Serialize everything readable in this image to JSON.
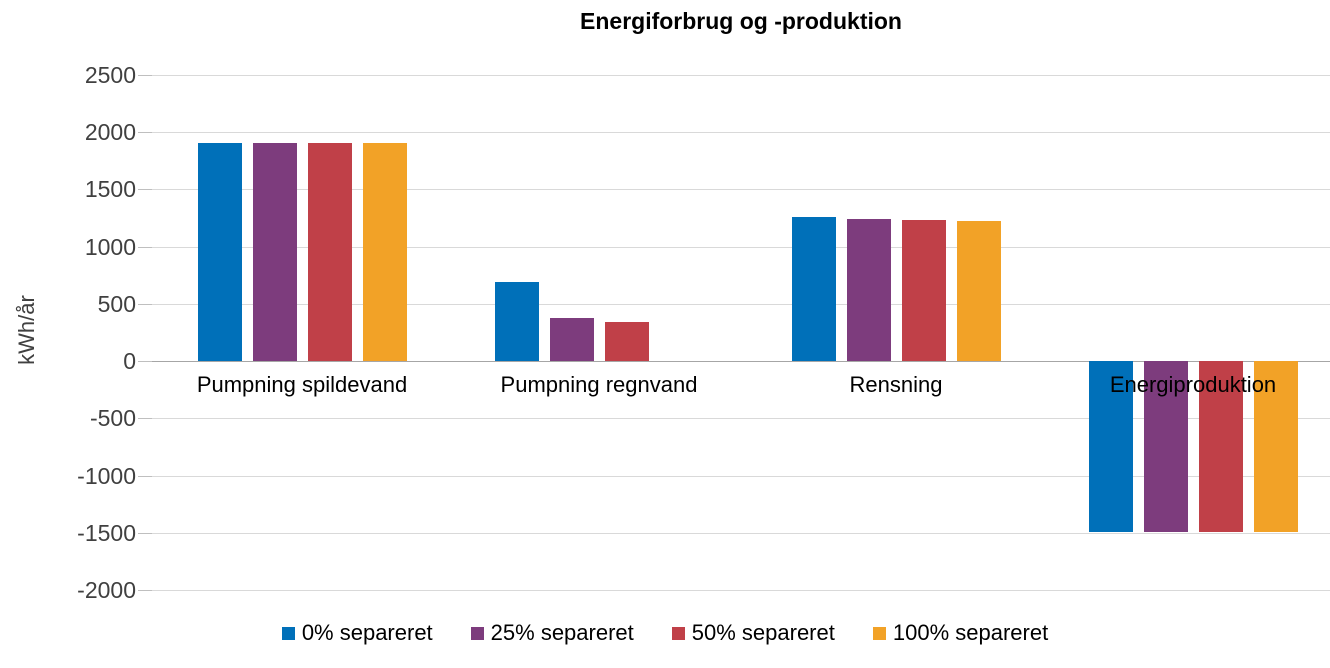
{
  "chart_data": {
    "type": "bar",
    "title": "Energiforbrug og -produktion",
    "ylabel": "kWh/år",
    "categories": [
      "Pumpning spildevand",
      "Pumpning regnvand",
      "Rensning",
      "Energiproduktion"
    ],
    "series": [
      {
        "name": "0% separeret",
        "color": "#0070B9",
        "values": [
          1910,
          690,
          1260,
          -1490
        ]
      },
      {
        "name": "25% separeret",
        "color": "#7D3C7D",
        "values": [
          1910,
          380,
          1240,
          -1490
        ]
      },
      {
        "name": "50% separeret",
        "color": "#C04048",
        "values": [
          1910,
          340,
          1230,
          -1490
        ]
      },
      {
        "name": "100% separeret",
        "color": "#F2A227",
        "values": [
          1910,
          0,
          1220,
          -1490
        ]
      }
    ],
    "ylim": [
      -2000,
      2500
    ],
    "yticks": [
      2500,
      2000,
      1500,
      1000,
      500,
      0,
      -500,
      -1000,
      -1500,
      -2000
    ],
    "grid": true,
    "legend_position": "bottom",
    "colors": {
      "gridline": "#D9D9D9",
      "zero_line": "#A6A6A6",
      "tick_mark": "#BFBFBF",
      "axis_text": "#404040",
      "label_text": "#000000",
      "background": "#FFFFFF"
    }
  }
}
